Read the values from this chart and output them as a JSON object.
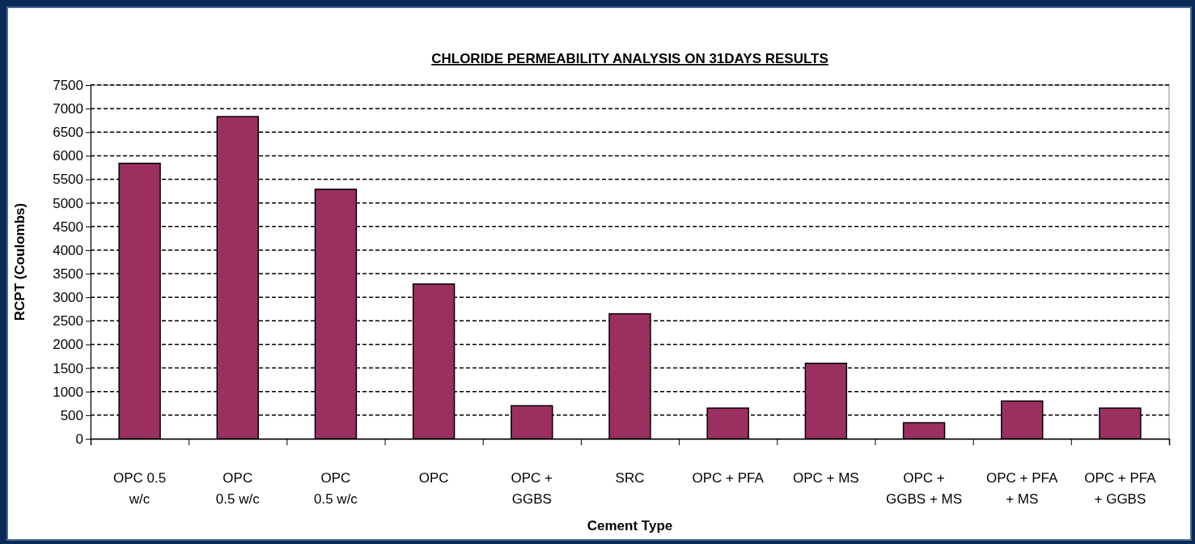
{
  "chart_data": {
    "type": "bar",
    "title": "CHLORIDE PERMEABILITY ANALYSIS ON 31DAYS RESULTS",
    "xlabel": "Cement Type",
    "ylabel": "RCPT (Coulombs)",
    "categories": [
      "OPC 0.5\nw/c",
      "OPC\n0.5 w/c",
      "OPC\n0.5 w/c",
      "OPC",
      "OPC +\nGGBS",
      "SRC",
      "OPC + PFA",
      "OPC + MS",
      "OPC +\nGGBS + MS",
      "OPC + PFA\n+ MS",
      "OPC + PFA\n+ GGBS"
    ],
    "values": [
      5840,
      6830,
      5290,
      3280,
      700,
      2650,
      650,
      1600,
      340,
      800,
      650
    ],
    "color": "#9b3060",
    "ylim": [
      0,
      7500
    ],
    "yticks": [
      0,
      500,
      1000,
      1500,
      2000,
      2500,
      3000,
      3500,
      4000,
      4500,
      5000,
      5500,
      6000,
      6500,
      7000,
      7500
    ],
    "grid": "y"
  }
}
